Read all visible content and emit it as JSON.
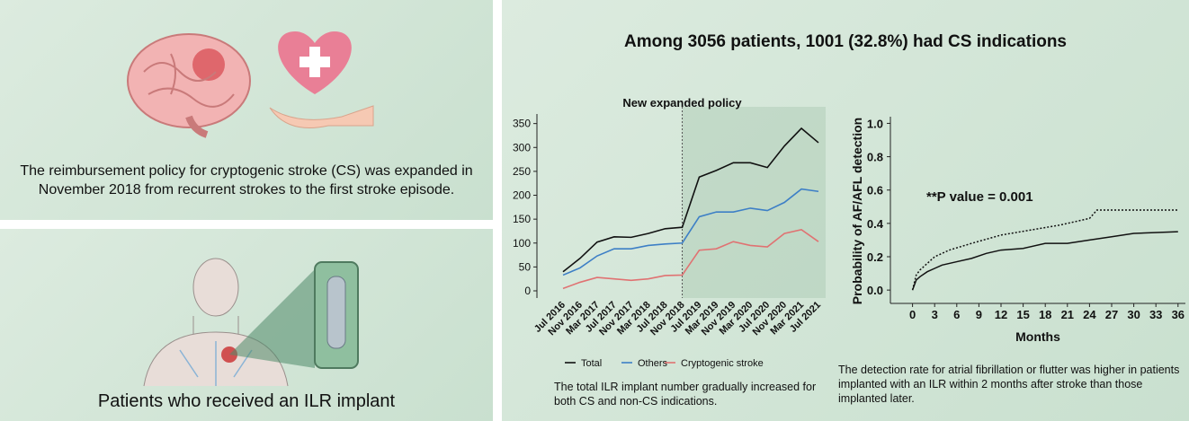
{
  "panels": {
    "policy": {
      "text": "The reimbursement policy for cryptogenic stroke (CS) was expanded in November 2018 from recurrent strokes to the first stroke episode."
    },
    "implant": {
      "label": "Patients who received an ILR implant"
    }
  },
  "title": "Among 3056 patients, 1001 (32.8%) had CS indications",
  "chart_data": [
    {
      "type": "line",
      "annotation": "New expanded policy",
      "caption": "The total ILR implant number gradually increased for both CS and non-CS indications.",
      "categories": [
        "Jul 2016",
        "Nov 2016",
        "Mar 2017",
        "Jul 2017",
        "Nov 2017",
        "Mar 2018",
        "Jul 2018",
        "Nov 2018",
        "Jul 2019",
        "Mar 2019",
        "Nov 2019",
        "Mar 2020",
        "Jul 2020",
        "Nov 2020",
        "Mar 2021",
        "Jul 2021"
      ],
      "series": [
        {
          "name": "Total",
          "color": "#111111",
          "values": [
            40,
            68,
            102,
            113,
            112,
            120,
            130,
            133,
            238,
            252,
            268,
            268,
            258,
            303,
            340,
            310
          ]
        },
        {
          "name": "Others",
          "color": "#3d7fc6",
          "values": [
            33,
            48,
            73,
            88,
            88,
            95,
            98,
            100,
            155,
            165,
            165,
            173,
            168,
            185,
            213,
            208
          ]
        },
        {
          "name": "Cryptogenic stroke",
          "color": "#e07272",
          "values": [
            5,
            18,
            28,
            25,
            22,
            25,
            32,
            33,
            85,
            88,
            103,
            95,
            92,
            120,
            128,
            103
          ]
        }
      ],
      "ylim": [
        -15,
        370
      ],
      "yticks": [
        0,
        50,
        100,
        150,
        200,
        250,
        300,
        350
      ],
      "legend": "bottom"
    },
    {
      "type": "step",
      "annotation": "**P value = 0.001",
      "caption": "The detection rate for atrial fibrillation or flutter was higher in patients implanted with an ILR within 2 months after stroke than those implanted later.",
      "x_label": "Months",
      "y_label": "Probability of AF/AFL detection",
      "series": [
        {
          "color": "#111111",
          "dash": "solid",
          "x": [
            0,
            0.5,
            1,
            2,
            3,
            4,
            6,
            8,
            10,
            12,
            15,
            18,
            21,
            24,
            27,
            30,
            36
          ],
          "values": [
            0,
            0.06,
            0.08,
            0.11,
            0.13,
            0.15,
            0.17,
            0.19,
            0.22,
            0.24,
            0.25,
            0.28,
            0.28,
            0.3,
            0.32,
            0.34,
            0.35
          ]
        },
        {
          "color": "#111111",
          "dash": "dotted",
          "x": [
            0,
            0.5,
            1,
            2,
            3,
            5,
            8,
            12,
            16,
            20,
            22,
            24,
            25,
            36
          ],
          "values": [
            0,
            0.09,
            0.12,
            0.16,
            0.2,
            0.24,
            0.28,
            0.33,
            0.36,
            0.39,
            0.41,
            0.43,
            0.48,
            0.48
          ]
        }
      ],
      "xlim": [
        -3,
        37
      ],
      "xticks": [
        0,
        3,
        6,
        9,
        12,
        15,
        18,
        21,
        24,
        27,
        30,
        33,
        36
      ],
      "ylim": [
        -0.08,
        1.04
      ],
      "yticks": [
        {
          "value": 0,
          "label": "0.0"
        },
        0.2,
        0.4,
        0.6,
        0.8,
        {
          "value": 1,
          "label": "1.0"
        }
      ]
    }
  ]
}
